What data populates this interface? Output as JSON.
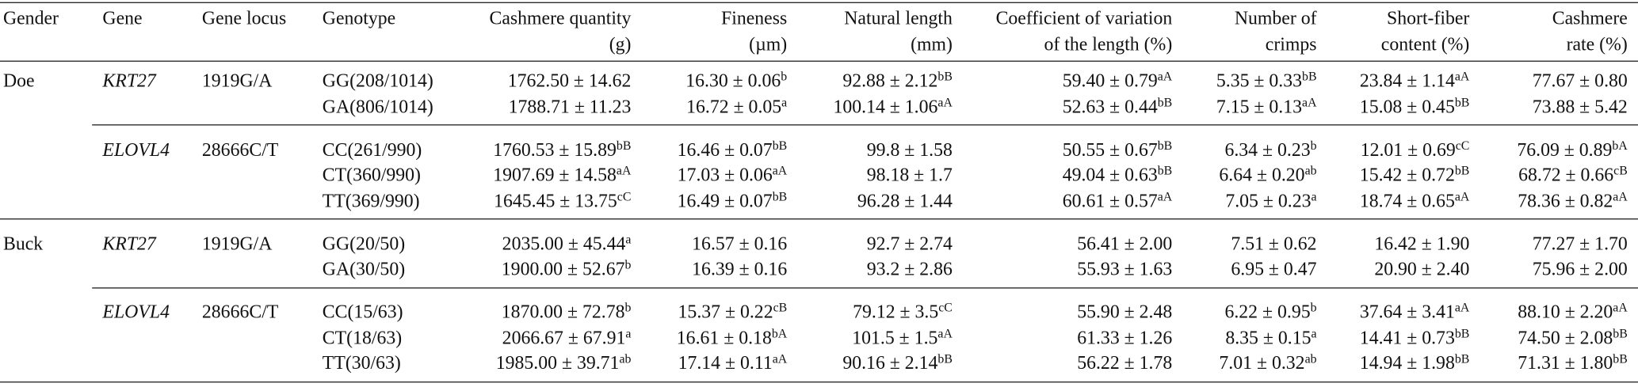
{
  "table": {
    "headers": [
      [
        "Gender"
      ],
      [
        "Gene"
      ],
      [
        "Gene locus"
      ],
      [
        "Genotype"
      ],
      [
        "Cashmere quantity",
        "(g)"
      ],
      [
        "Fineness",
        "(µm)"
      ],
      [
        "Natural length",
        "(mm)"
      ],
      [
        "Coefficient of variation",
        "of the length (%)"
      ],
      [
        "Number of",
        "crimps"
      ],
      [
        "Short-fiber",
        "content (%)"
      ],
      [
        "Cashmere",
        "rate (%)"
      ]
    ],
    "groups": [
      {
        "gender": "Doe",
        "genes": [
          {
            "gene": "KRT27",
            "locus": "1919G/A",
            "rows": [
              {
                "genotype": "GG(208/1014)",
                "values": [
                  {
                    "text": "1762.50 ± 14.62"
                  },
                  {
                    "text": "16.30 ± 0.06",
                    "sup": "b"
                  },
                  {
                    "text": "92.88 ± 2.12",
                    "sup": "bB"
                  },
                  {
                    "text": "59.40 ± 0.79",
                    "sup": "aA"
                  },
                  {
                    "text": "5.35 ± 0.33",
                    "sup": "bB"
                  },
                  {
                    "text": "23.84 ± 1.14",
                    "sup": "aA"
                  },
                  {
                    "text": "77.67 ± 0.80"
                  }
                ]
              },
              {
                "genotype": "GA(806/1014)",
                "values": [
                  {
                    "text": "1788.71 ± 11.23"
                  },
                  {
                    "text": "16.72 ± 0.05",
                    "sup": "a"
                  },
                  {
                    "text": "100.14 ± 1.06",
                    "sup": "aA"
                  },
                  {
                    "text": "52.63 ± 0.44",
                    "sup": "bB"
                  },
                  {
                    "text": "7.15 ± 0.13",
                    "sup": "aA"
                  },
                  {
                    "text": "15.08 ± 0.45",
                    "sup": "bB"
                  },
                  {
                    "text": "73.88 ± 5.42"
                  }
                ]
              }
            ]
          },
          {
            "gene": "ELOVL4",
            "locus": "28666C/T",
            "rows": [
              {
                "genotype": "CC(261/990)",
                "values": [
                  {
                    "text": "1760.53 ± 15.89",
                    "sup": "bB"
                  },
                  {
                    "text": "16.46 ± 0.07",
                    "sup": "bB"
                  },
                  {
                    "text": "99.8 ± 1.58"
                  },
                  {
                    "text": "50.55 ± 0.67",
                    "sup": "bB"
                  },
                  {
                    "text": "6.34 ± 0.23",
                    "sup": "b"
                  },
                  {
                    "text": "12.01 ± 0.69",
                    "sup": "cC"
                  },
                  {
                    "text": "76.09 ± 0.89",
                    "sup": "bA"
                  }
                ]
              },
              {
                "genotype": "CT(360/990)",
                "values": [
                  {
                    "text": "1907.69 ± 14.58",
                    "sup": "aA"
                  },
                  {
                    "text": "17.03 ± 0.06",
                    "sup": "aA"
                  },
                  {
                    "text": "98.18 ± 1.7"
                  },
                  {
                    "text": "49.04 ± 0.63",
                    "sup": "bB"
                  },
                  {
                    "text": "6.64 ± 0.20",
                    "sup": "ab"
                  },
                  {
                    "text": "15.42 ± 0.72",
                    "sup": "bB"
                  },
                  {
                    "text": "68.72 ± 0.66",
                    "sup": "cB"
                  }
                ]
              },
              {
                "genotype": "TT(369/990)",
                "values": [
                  {
                    "text": "1645.45 ± 13.75",
                    "sup": "cC"
                  },
                  {
                    "text": "16.49 ± 0.07",
                    "sup": "bB"
                  },
                  {
                    "text": "96.28 ± 1.44"
                  },
                  {
                    "text": "60.61 ± 0.57",
                    "sup": "aA"
                  },
                  {
                    "text": "7.05 ± 0.23",
                    "sup": "a"
                  },
                  {
                    "text": "18.74 ± 0.65",
                    "sup": "aA"
                  },
                  {
                    "text": "78.36 ± 0.82",
                    "sup": "aA"
                  }
                ]
              }
            ]
          }
        ]
      },
      {
        "gender": "Buck",
        "genes": [
          {
            "gene": "KRT27",
            "locus": "1919G/A",
            "rows": [
              {
                "genotype": "GG(20/50)",
                "values": [
                  {
                    "text": "2035.00 ± 45.44",
                    "sup": "a"
                  },
                  {
                    "text": "16.57 ± 0.16"
                  },
                  {
                    "text": "92.7 ± 2.74"
                  },
                  {
                    "text": "56.41 ± 2.00"
                  },
                  {
                    "text": "7.51 ± 0.62"
                  },
                  {
                    "text": "16.42 ± 1.90"
                  },
                  {
                    "text": "77.27 ± 1.70"
                  }
                ]
              },
              {
                "genotype": "GA(30/50)",
                "values": [
                  {
                    "text": "1900.00 ± 52.67",
                    "sup": "b"
                  },
                  {
                    "text": "16.39 ± 0.16"
                  },
                  {
                    "text": "93.2 ± 2.86"
                  },
                  {
                    "text": "55.93 ± 1.63"
                  },
                  {
                    "text": "6.95 ± 0.47"
                  },
                  {
                    "text": "20.90 ± 2.40"
                  },
                  {
                    "text": "75.96 ± 2.00"
                  }
                ]
              }
            ]
          },
          {
            "gene": "ELOVL4",
            "locus": "28666C/T",
            "rows": [
              {
                "genotype": "CC(15/63)",
                "values": [
                  {
                    "text": "1870.00 ± 72.78",
                    "sup": "b"
                  },
                  {
                    "text": "15.37 ± 0.22",
                    "sup": "cB"
                  },
                  {
                    "text": "79.12 ± 3.5",
                    "sup": "cC"
                  },
                  {
                    "text": "55.90 ± 2.48"
                  },
                  {
                    "text": "6.22 ± 0.95",
                    "sup": "b"
                  },
                  {
                    "text": "37.64 ± 3.41",
                    "sup": "aA"
                  },
                  {
                    "text": "88.10 ± 2.20",
                    "sup": "aA"
                  }
                ]
              },
              {
                "genotype": "CT(18/63)",
                "values": [
                  {
                    "text": "2066.67 ± 67.91",
                    "sup": "a"
                  },
                  {
                    "text": "16.61 ± 0.18",
                    "sup": "bA"
                  },
                  {
                    "text": "101.5 ± 1.5",
                    "sup": "aA"
                  },
                  {
                    "text": "61.33 ± 1.26"
                  },
                  {
                    "text": "8.35 ± 0.15",
                    "sup": "a"
                  },
                  {
                    "text": "14.41 ± 0.73",
                    "sup": "bB"
                  },
                  {
                    "text": "74.50 ± 2.08",
                    "sup": "bB"
                  }
                ]
              },
              {
                "genotype": "TT(30/63)",
                "values": [
                  {
                    "text": "1985.00 ± 39.71",
                    "sup": "ab"
                  },
                  {
                    "text": "17.14 ± 0.11",
                    "sup": "aA"
                  },
                  {
                    "text": "90.16 ± 2.14",
                    "sup": "bB"
                  },
                  {
                    "text": "56.22 ± 1.78"
                  },
                  {
                    "text": "7.01 ± 0.32",
                    "sup": "ab"
                  },
                  {
                    "text": "14.94 ± 1.98",
                    "sup": "bB"
                  },
                  {
                    "text": "71.31 ± 1.80",
                    "sup": "bB"
                  }
                ]
              }
            ]
          }
        ]
      }
    ]
  }
}
